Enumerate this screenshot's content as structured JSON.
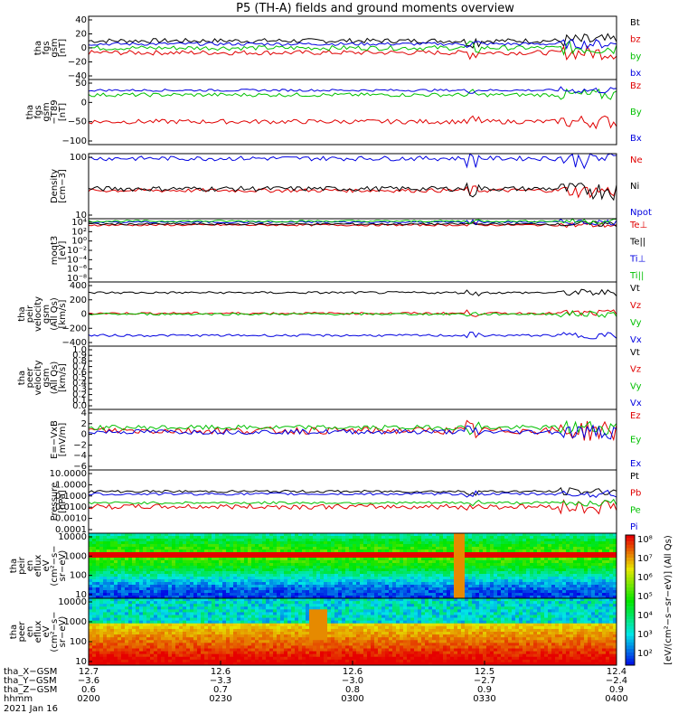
{
  "title": "P5 (TH-A) fields and ground moments overview",
  "date": "2021 Jan 16",
  "colors": {
    "black": "#000000",
    "red": "#e00000",
    "green": "#00c000",
    "blue": "#0000e0"
  },
  "chart_data": [
    {
      "type": "line",
      "id": "fgs-gsm",
      "ylabel_lines": [
        "tha",
        "fgs",
        "gsm",
        "[nT]"
      ],
      "yticks": [
        "40",
        "20",
        "0",
        "−20",
        "−40"
      ],
      "ylim": [
        -40,
        40
      ],
      "legend": [
        "Bt",
        "bz",
        "by",
        "bx"
      ],
      "series": [
        {
          "name": "Bt",
          "color": "black",
          "base": 9,
          "noise": 3
        },
        {
          "name": "bz",
          "color": "red",
          "base": -6,
          "noise": 3
        },
        {
          "name": "by",
          "color": "green",
          "base": 0,
          "noise": 3
        },
        {
          "name": "bx",
          "color": "blue",
          "base": 5,
          "noise": 2
        }
      ]
    },
    {
      "type": "line",
      "id": "fgs-gsm-t89",
      "ylabel_lines": [
        "tha",
        "fgs",
        "gsm",
        "−T89",
        "[nT]"
      ],
      "yticks": [
        "50",
        "0",
        "−50",
        "−100"
      ],
      "ylim": [
        -120,
        50
      ],
      "legend": [
        "Bz",
        "By",
        "Bx"
      ],
      "series": [
        {
          "name": "Bz",
          "color": "red",
          "base": -60,
          "noise": 6
        },
        {
          "name": "By",
          "color": "green",
          "base": 10,
          "noise": 5
        },
        {
          "name": "Bx",
          "color": "blue",
          "base": 22,
          "noise": 3
        }
      ]
    },
    {
      "type": "line",
      "id": "density",
      "ylabel_lines": [
        "Density",
        "[cm−3]"
      ],
      "yticks": [
        "100",
        "10"
      ],
      "ylim": [
        1,
        300
      ],
      "log": true,
      "legend": [
        "Ne",
        "Ni",
        "Npot"
      ],
      "series": [
        {
          "name": "Ne",
          "color": "red",
          "base": 12,
          "noise": 2
        },
        {
          "name": "Ni",
          "color": "black",
          "base": 14,
          "noise": 3
        },
        {
          "name": "Npot",
          "color": "blue",
          "base": 200,
          "noise": 40
        }
      ]
    },
    {
      "type": "line",
      "id": "moqt3",
      "ylabel_lines": [
        "moqt3",
        "[eV]"
      ],
      "yticks": [
        "10⁴",
        "10²",
        "10⁰",
        "10⁻²",
        "10⁻⁴",
        "10⁻⁶",
        "10⁻⁸"
      ],
      "ylim": [
        -9,
        4
      ],
      "legend": [
        "Te⊥",
        "Te||",
        "Ti⊥",
        "Ti||"
      ],
      "series": [
        {
          "name": "Te⊥",
          "color": "red",
          "base": 2.7,
          "noise": 0.2
        },
        {
          "name": "Te||",
          "color": "black",
          "base": 2.9,
          "noise": 0.2
        },
        {
          "name": "Ti⊥",
          "color": "blue",
          "base": 3.3,
          "noise": 0.2
        },
        {
          "name": "Ti||",
          "color": "green",
          "base": 3.5,
          "noise": 0.2
        }
      ]
    },
    {
      "type": "line",
      "id": "peir-velocity",
      "ylabel_lines": [
        "tha",
        "peir",
        "velocity",
        "gsm",
        "(All Qs)",
        "[km/s]"
      ],
      "yticks": [
        "400",
        "200",
        "0",
        "−200",
        "−400"
      ],
      "ylim": [
        -420,
        420
      ],
      "legend": [
        "Vt",
        "Vz",
        "Vy",
        "Vx"
      ],
      "series": [
        {
          "name": "Vt",
          "color": "black",
          "base": 280,
          "noise": 15
        },
        {
          "name": "Vz",
          "color": "red",
          "base": 10,
          "noise": 15
        },
        {
          "name": "Vy",
          "color": "green",
          "base": 0,
          "noise": 15
        },
        {
          "name": "Vx",
          "color": "blue",
          "base": -280,
          "noise": 15
        }
      ]
    },
    {
      "type": "line",
      "id": "peer-velocity",
      "ylabel_lines": [
        "tha",
        "peer",
        "velocity",
        "gsm",
        "(All Qs)",
        "[km/s]"
      ],
      "yticks": [
        "1.0",
        "0.9",
        "0.8",
        "0.7",
        "0.6",
        "0.5",
        "0.4",
        "0.3",
        "0.2",
        "0.1",
        "0.0"
      ],
      "ylim": [
        0,
        1
      ],
      "legend": [
        "Vt",
        "Vz",
        "Vy",
        "Vx"
      ],
      "series": []
    },
    {
      "type": "line",
      "id": "efield",
      "ylabel_lines": [
        "E=−VxB",
        "[mV/m]"
      ],
      "yticks": [
        "4",
        "2",
        "0",
        "−2",
        "−4",
        "−6"
      ],
      "ylim": [
        -6,
        4
      ],
      "legend": [
        "Ez",
        "Ey",
        "Ex"
      ],
      "series": [
        {
          "name": "Ez",
          "color": "red",
          "base": 0.5,
          "noise": 0.6
        },
        {
          "name": "Ey",
          "color": "green",
          "base": 1.0,
          "noise": 0.4
        },
        {
          "name": "Ex",
          "color": "blue",
          "base": 0.3,
          "noise": 0.4
        }
      ]
    },
    {
      "type": "line",
      "id": "pressure",
      "ylabel_lines": [
        "Pressure",
        "[nPa]"
      ],
      "yticks": [
        "10.0000",
        "1.0000",
        "0.1000",
        "0.0100",
        "0.0010",
        "0.0001"
      ],
      "ylim": [
        -4,
        1
      ],
      "log": true,
      "legend": [
        "Pt",
        "Pb",
        "Pe",
        "Pi"
      ],
      "series": [
        {
          "name": "Pt",
          "color": "black",
          "base": -0.7,
          "noise": 0.1
        },
        {
          "name": "Pb",
          "color": "red",
          "base": -1.9,
          "noise": 0.2
        },
        {
          "name": "Pe",
          "color": "green",
          "base": -1.6,
          "noise": 0.1
        },
        {
          "name": "Pi",
          "color": "blue",
          "base": -0.9,
          "noise": 0.1
        }
      ]
    },
    {
      "type": "heatmap",
      "id": "peir-en-eflux",
      "ylabel_lines": [
        "tha",
        "peir",
        "en",
        "eflux",
        "eV",
        "(cm²−s−",
        "sr−eV)"
      ],
      "yticks": [
        "10000",
        "1000",
        "100",
        "10"
      ],
      "log": true
    },
    {
      "type": "heatmap",
      "id": "peer-en-eflux",
      "ylabel_lines": [
        "tha",
        "peer",
        "en",
        "eflux",
        "eV",
        "(cm²−s−",
        "sr−eV)"
      ],
      "yticks": [
        "10000",
        "1000",
        "100",
        "10"
      ],
      "log": true
    }
  ],
  "colorbar": {
    "ticks": [
      "10⁸",
      "10⁷",
      "10⁶",
      "10⁵",
      "10⁴",
      "10³",
      "10²"
    ],
    "label": "[eV/(cm²−s−sr−eV)] (All Qs)"
  },
  "xaxis": {
    "row_labels": [
      "tha_X−GSM",
      "tha_Y−GSM",
      "tha_Z−GSM",
      "hhmm"
    ],
    "ticks": [
      {
        "time": "0200",
        "x_gsm": "12.7",
        "y_gsm": "−3.6",
        "z_gsm": "0.6"
      },
      {
        "time": "0230",
        "x_gsm": "12.6",
        "y_gsm": "−3.3",
        "z_gsm": "0.7"
      },
      {
        "time": "0300",
        "x_gsm": "12.6",
        "y_gsm": "−3.0",
        "z_gsm": "0.8"
      },
      {
        "time": "0330",
        "x_gsm": "12.5",
        "y_gsm": "−2.7",
        "z_gsm": "0.9"
      },
      {
        "time": "0400",
        "x_gsm": "12.4",
        "y_gsm": "−2.4",
        "z_gsm": "0.9"
      }
    ]
  }
}
